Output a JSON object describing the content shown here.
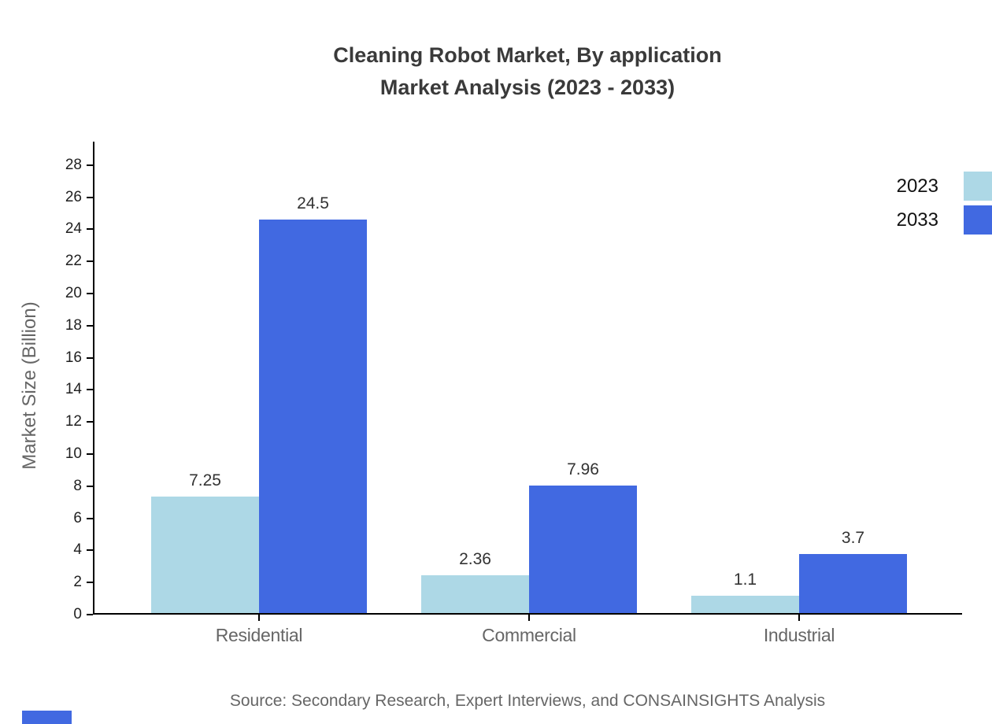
{
  "title": {
    "line1": "Cleaning Robot Market, By application",
    "line2": "Market Analysis (2023 - 2033)"
  },
  "chart_data": {
    "type": "bar",
    "categories": [
      "Residential",
      "Commercial",
      "Industrial"
    ],
    "series": [
      {
        "name": "2023",
        "color": "#ADD8E6",
        "values": [
          7.25,
          2.36,
          1.1
        ]
      },
      {
        "name": "2033",
        "color": "#4169E1",
        "values": [
          24.5,
          7.96,
          3.7
        ]
      }
    ],
    "title": "Cleaning Robot Market, By application Market Analysis (2023 - 2033)",
    "xlabel": "",
    "ylabel": "Market Size (Billion)",
    "ylim": [
      0,
      29.5
    ],
    "yticks": [
      0,
      2,
      4,
      6,
      8,
      10,
      12,
      14,
      16,
      18,
      20,
      22,
      24,
      26,
      28
    ],
    "grid": false,
    "legend_position": "top-right",
    "data_labels": true
  },
  "source_note": "Source: Secondary Research, Expert Interviews, and CONSAINSIGHTS Analysis",
  "colors": {
    "series_2023": "#ADD8E6",
    "series_2033": "#4169E1",
    "axis": "#000000",
    "title_text": "#3a3a3a",
    "muted_text": "#666666",
    "tick_text": "#1f1f1f",
    "value_text": "#333333",
    "background": "#ffffff",
    "brand_mark": "#4169E1"
  }
}
